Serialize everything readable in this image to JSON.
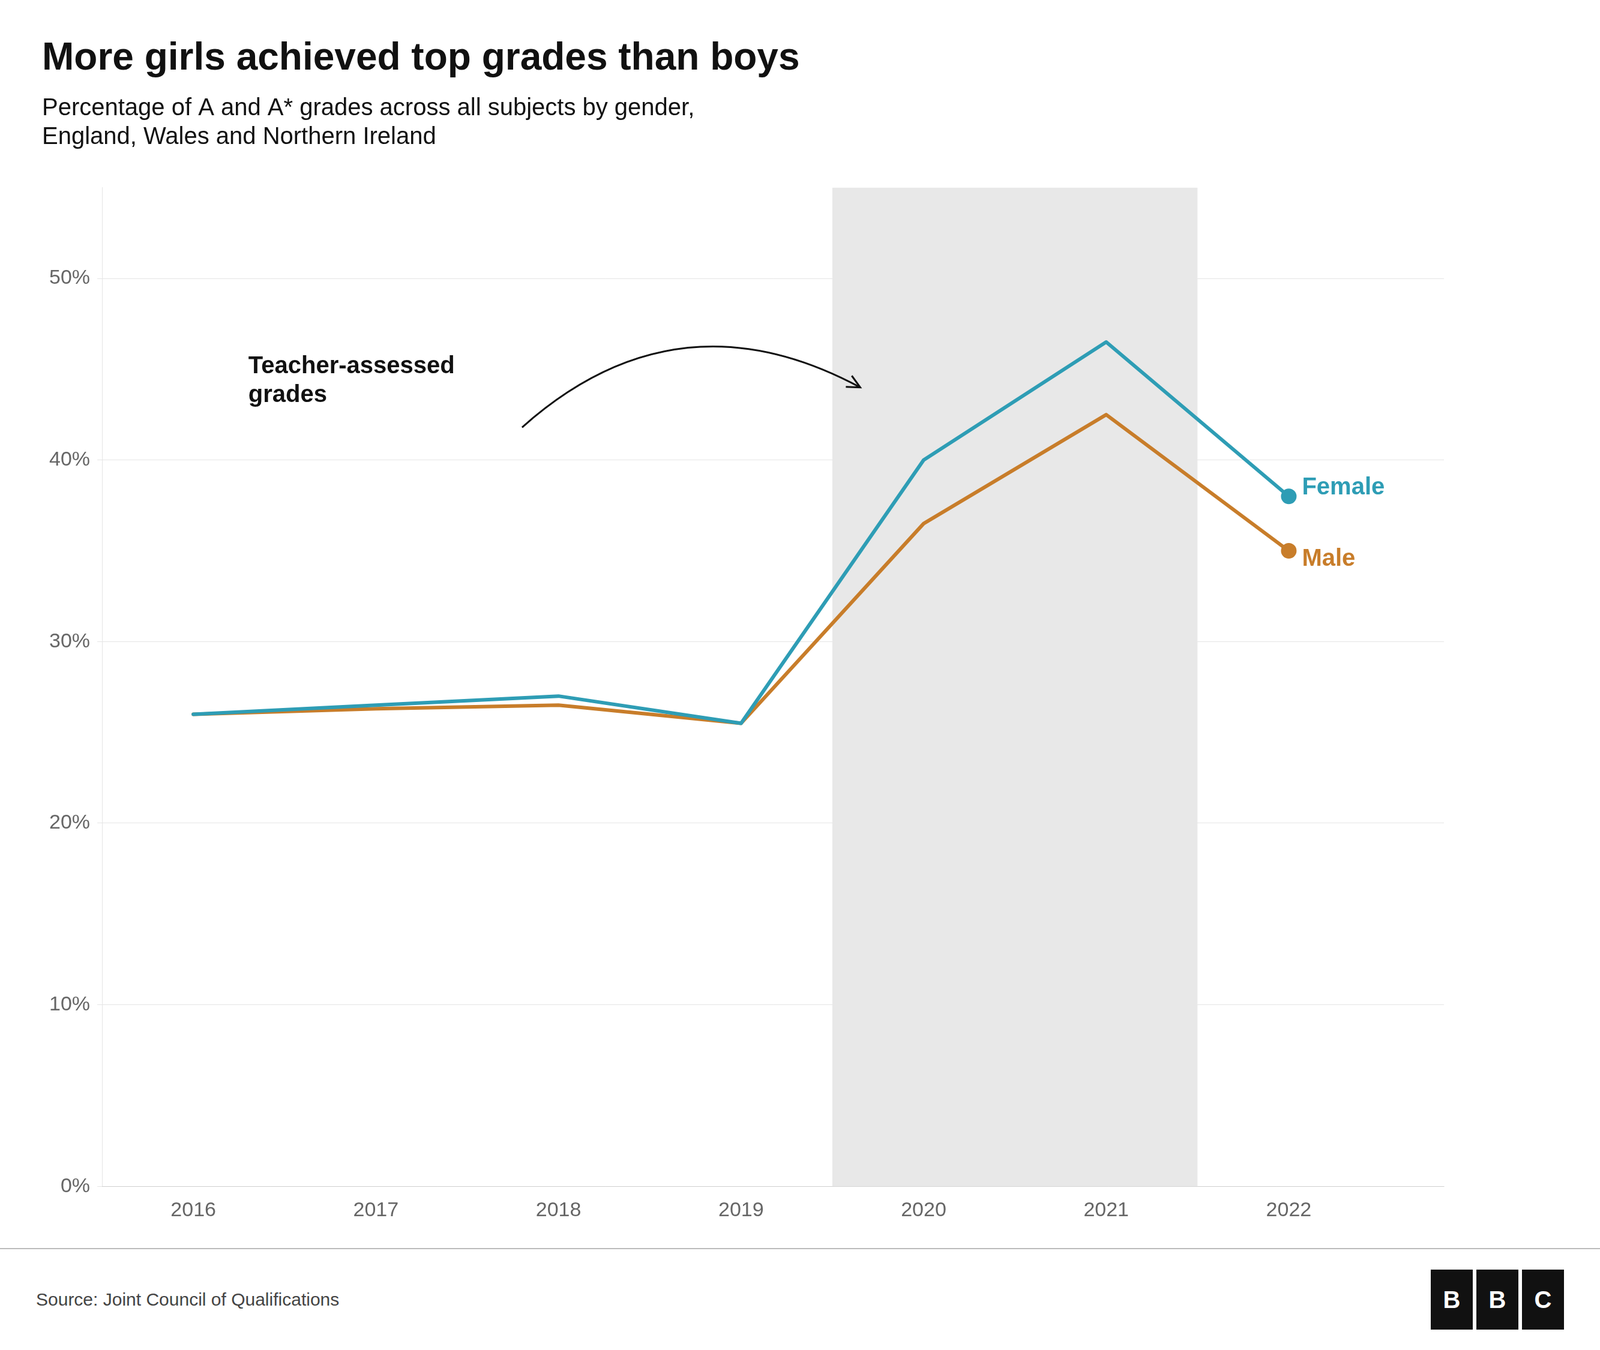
{
  "chart_data": {
    "type": "line",
    "title": "More girls achieved top grades than boys",
    "subtitle": [
      "Percentage of A and A* grades across all subjects by gender,",
      "England, Wales and Northern Ireland"
    ],
    "x": [
      2016,
      2017,
      2018,
      2019,
      2020,
      2021,
      2022
    ],
    "series": [
      {
        "name": "Female",
        "color": "#2E9DB5",
        "values": [
          26.0,
          26.5,
          27.0,
          25.5,
          40.0,
          46.5,
          38.0
        ]
      },
      {
        "name": "Male",
        "color": "#C87D2A",
        "values": [
          26.0,
          26.3,
          26.5,
          25.5,
          36.5,
          42.5,
          35.0
        ]
      }
    ],
    "xlim": [
      2015.5,
      2022.85
    ],
    "xticks": [
      2016,
      2017,
      2018,
      2019,
      2020,
      2021,
      2022
    ],
    "ylim": [
      0,
      55
    ],
    "yticks": [
      {
        "value": 0,
        "label": "0%"
      },
      {
        "value": 10,
        "label": "10%"
      },
      {
        "value": 20,
        "label": "20%"
      },
      {
        "value": 30,
        "label": "30%"
      },
      {
        "value": 40,
        "label": "40%"
      },
      {
        "value": 50,
        "label": "50%"
      }
    ],
    "grid": "y",
    "shade": {
      "start": 2019.5,
      "end": 2021.5,
      "color": "#E8E8E8"
    },
    "annotation": [
      "Teacher-assessed",
      "grades"
    ],
    "source": "Source: Joint Council of Qualifications",
    "logo": "BBC"
  }
}
